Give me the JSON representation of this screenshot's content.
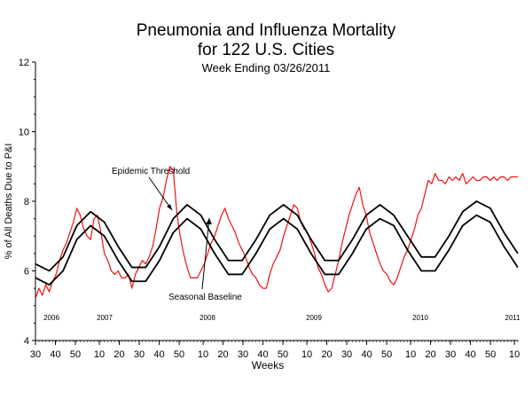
{
  "chart_data": {
    "type": "line",
    "title": "Pneumonia and Influenza Mortality",
    "subtitle": "for 122 U.S. Cities",
    "subtitle2": "Week Ending   03/26/2011",
    "xlabel": "Weeks",
    "ylabel": "% of All Deaths Due to P&I",
    "ylim": [
      4,
      12
    ],
    "yticks": [
      "4",
      "6",
      "8",
      "10",
      "12"
    ],
    "x_start_week_label": "30",
    "x_total_weeks": 140,
    "xticks": [
      "30",
      "40",
      "50",
      "10",
      "20",
      "30",
      "40",
      "50",
      "10",
      "20",
      "30",
      "40",
      "50",
      "10",
      "20",
      "30",
      "40",
      "50",
      "10",
      "20",
      "30",
      "40",
      "50",
      "10"
    ],
    "year_labels": [
      "2006",
      "2007",
      "2008",
      "2009",
      "2010",
      "2011"
    ],
    "grid": false,
    "annotations": {
      "threshold": "Epidemic Threshold",
      "baseline": "Seasonal Baseline"
    },
    "series": [
      {
        "name": "Epidemic Threshold",
        "color": "#000000",
        "x": [
          0,
          4,
          8,
          12,
          16,
          20,
          24,
          28,
          32,
          36,
          40,
          44,
          48,
          52,
          56,
          60,
          64,
          68,
          72,
          76,
          80,
          84,
          88,
          92,
          96,
          100,
          104,
          108,
          112,
          116,
          120,
          124,
          128,
          132,
          136,
          140
        ],
        "values": [
          6.2,
          6.0,
          6.4,
          7.3,
          7.7,
          7.4,
          6.7,
          6.1,
          6.1,
          6.7,
          7.5,
          7.9,
          7.6,
          6.9,
          6.3,
          6.3,
          6.9,
          7.6,
          7.9,
          7.6,
          6.9,
          6.3,
          6.3,
          6.9,
          7.6,
          7.9,
          7.6,
          7.0,
          6.4,
          6.4,
          7.0,
          7.7,
          8.0,
          7.8,
          7.1,
          6.5
        ]
      },
      {
        "name": "Seasonal Baseline",
        "color": "#000000",
        "x": [
          0,
          4,
          8,
          12,
          16,
          20,
          24,
          28,
          32,
          36,
          40,
          44,
          48,
          52,
          56,
          60,
          64,
          68,
          72,
          76,
          80,
          84,
          88,
          92,
          96,
          100,
          104,
          108,
          112,
          116,
          120,
          124,
          128,
          132,
          136,
          140
        ],
        "values": [
          5.8,
          5.6,
          6.0,
          6.9,
          7.3,
          7.0,
          6.3,
          5.7,
          5.7,
          6.3,
          7.1,
          7.5,
          7.2,
          6.5,
          5.9,
          5.9,
          6.5,
          7.2,
          7.5,
          7.2,
          6.5,
          5.9,
          5.9,
          6.5,
          7.2,
          7.5,
          7.3,
          6.6,
          6.0,
          6.0,
          6.6,
          7.3,
          7.6,
          7.4,
          6.7,
          6.1
        ]
      },
      {
        "name": "P&I Mortality",
        "color": "#ee1111",
        "x": [
          0,
          1,
          2,
          3,
          4,
          5,
          6,
          7,
          8,
          9,
          10,
          11,
          12,
          13,
          14,
          15,
          16,
          17,
          18,
          19,
          20,
          21,
          22,
          23,
          24,
          25,
          26,
          27,
          28,
          29,
          30,
          31,
          32,
          33,
          34,
          35,
          36,
          37,
          38,
          39,
          40,
          41,
          42,
          43,
          44,
          45,
          46,
          47,
          48,
          49,
          50,
          51,
          52,
          53,
          54,
          55,
          56,
          57,
          58,
          59,
          60,
          61,
          62,
          63,
          64,
          65,
          66,
          67,
          68,
          69,
          70,
          71,
          72,
          73,
          74,
          75,
          76,
          77,
          78,
          79,
          80,
          81,
          82,
          83,
          84,
          85,
          86,
          87,
          88,
          89,
          90,
          91,
          92,
          93,
          94,
          95,
          96,
          97,
          98,
          99,
          100,
          101,
          102,
          103,
          104,
          105,
          106,
          107,
          108,
          109,
          110,
          111,
          112,
          113,
          114,
          115,
          116,
          117,
          118,
          119,
          120,
          121,
          122,
          123,
          124,
          125,
          126,
          127,
          128,
          129,
          130,
          131,
          132,
          133,
          134,
          135,
          136,
          137,
          138,
          139,
          140
        ],
        "values": [
          5.2,
          5.5,
          5.3,
          5.6,
          5.4,
          5.7,
          5.9,
          6.3,
          6.6,
          6.8,
          7.1,
          7.4,
          7.8,
          7.6,
          7.2,
          7.0,
          6.9,
          7.5,
          7.6,
          7.1,
          6.5,
          6.3,
          6.0,
          5.9,
          6.0,
          5.8,
          5.8,
          5.9,
          5.5,
          5.9,
          6.1,
          6.3,
          6.2,
          6.4,
          6.7,
          7.2,
          7.8,
          8.1,
          8.6,
          9.0,
          8.9,
          7.7,
          7.0,
          6.5,
          6.1,
          5.8,
          5.8,
          5.8,
          6.0,
          6.2,
          6.5,
          6.8,
          7.0,
          7.3,
          7.6,
          7.8,
          7.5,
          7.3,
          7.1,
          6.8,
          6.6,
          6.4,
          6.1,
          5.9,
          5.8,
          5.6,
          5.5,
          5.5,
          5.9,
          6.2,
          6.4,
          6.6,
          7.0,
          7.3,
          7.6,
          7.9,
          7.8,
          7.4,
          7.2,
          7.1,
          6.8,
          6.5,
          6.1,
          5.9,
          5.6,
          5.4,
          5.5,
          5.9,
          6.3,
          6.8,
          7.2,
          7.6,
          7.9,
          8.2,
          8.4,
          7.9,
          7.6,
          7.1,
          6.8,
          6.5,
          6.2,
          6.0,
          5.9,
          5.7,
          5.6,
          5.8,
          6.1,
          6.4,
          6.6,
          6.9,
          7.2,
          7.6,
          7.8,
          8.2,
          8.6,
          8.5,
          8.8,
          8.6,
          8.6,
          8.5,
          8.7,
          8.6,
          8.7,
          8.6,
          8.8,
          8.5,
          8.6,
          8.7,
          8.6,
          8.6,
          8.7,
          8.7,
          8.6,
          8.7,
          8.6,
          8.7,
          8.7,
          8.6,
          8.7,
          8.7,
          8.7
        ]
      }
    ]
  }
}
